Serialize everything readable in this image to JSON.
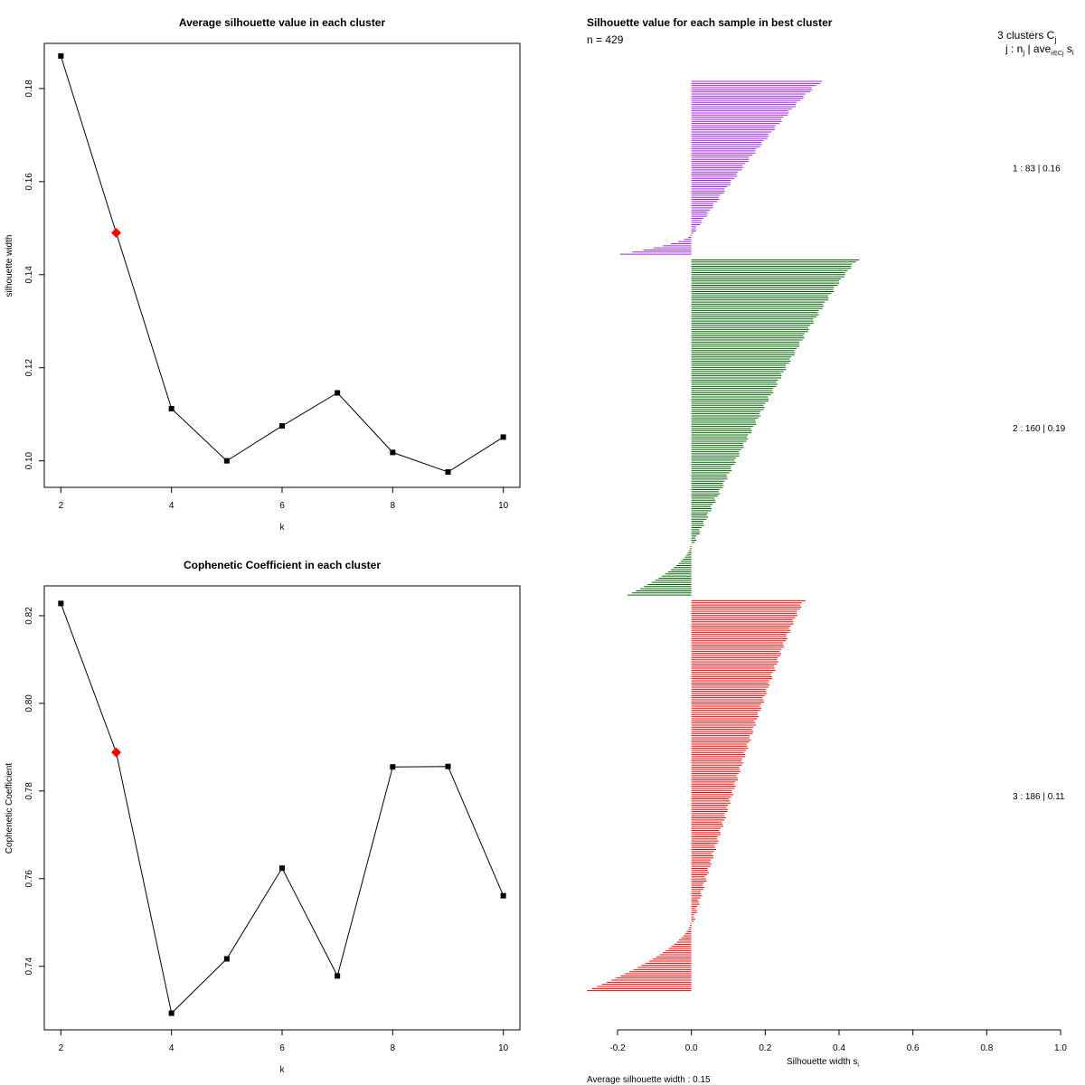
{
  "chart_data": [
    {
      "type": "line",
      "title": "Average silhouette value in each cluster",
      "xlabel": "k",
      "ylabel": "silhouette width",
      "x": [
        2,
        3,
        4,
        5,
        6,
        7,
        8,
        9,
        10
      ],
      "y": [
        0.187,
        0.149,
        0.1112,
        0.1,
        0.1075,
        0.1146,
        0.1018,
        0.0976,
        0.1051
      ],
      "highlight_k": 3,
      "xlim": [
        1.7,
        10.3
      ],
      "ylim": [
        0.0943,
        0.1897
      ],
      "xticks": [
        2,
        4,
        6,
        8,
        10
      ],
      "xtick_labels": [
        "2",
        "4",
        "6",
        "8",
        "10"
      ],
      "yticks": [
        0.1,
        0.12,
        0.14,
        0.16,
        0.18
      ],
      "ytick_labels": [
        "0.10",
        "0.12",
        "0.14",
        "0.16",
        "0.18"
      ],
      "colors": {
        "line": "#000000",
        "point": "#000000",
        "highlight": "#ff0000"
      }
    },
    {
      "type": "line",
      "title": "Cophenetic Coefficient in each cluster",
      "xlabel": "k",
      "ylabel": "Cophenetic Coefficient",
      "x": [
        2,
        3,
        4,
        5,
        6,
        7,
        8,
        9,
        10
      ],
      "y": [
        0.8228,
        0.7888,
        0.7293,
        0.7417,
        0.7624,
        0.7378,
        0.7855,
        0.7856,
        0.7561
      ],
      "highlight_k": 3,
      "xlim": [
        1.7,
        10.3
      ],
      "ylim": [
        0.7255,
        0.8268
      ],
      "xticks": [
        2,
        4,
        6,
        8,
        10
      ],
      "xtick_labels": [
        "2",
        "4",
        "6",
        "8",
        "10"
      ],
      "yticks": [
        0.74,
        0.76,
        0.78,
        0.8,
        0.82
      ],
      "ytick_labels": [
        "0.74",
        "0.76",
        "0.78",
        "0.80",
        "0.82"
      ],
      "colors": {
        "line": "#000000",
        "point": "#000000",
        "highlight": "#ff0000"
      }
    },
    {
      "type": "bar",
      "orientation": "horizontal",
      "title": "Silhouette value for each sample in best cluster",
      "n_label": "n = 429",
      "xlabel": "Silhouette width s",
      "xlabel_sub": "i",
      "xlim": [
        -0.2,
        1.0
      ],
      "xticks": [
        -0.2,
        0.0,
        0.2,
        0.4,
        0.6,
        0.8,
        1.0
      ],
      "xtick_labels": [
        "-0.2",
        "0.0",
        "0.2",
        "0.4",
        "0.6",
        "0.8",
        "1.0"
      ],
      "header_line1": "3  clusters  C",
      "header_line1_sub": "j",
      "header_line2": "j :  n",
      "header_line2_sub": "j",
      "header_line2_rest": " | ave",
      "header_line2_sub2": "i∈Cj",
      "header_line2_end": " s",
      "header_line2_sub3": "i",
      "average_label": "Average silhouette width :  0.15",
      "clusters": [
        {
          "id": 1,
          "size": 83,
          "avg": 0.16,
          "label": "1 :   83  |  0.16",
          "color": "#a020f0",
          "max": 0.36,
          "min": -0.19,
          "n_neg": 10
        },
        {
          "id": 2,
          "size": 160,
          "avg": 0.19,
          "label": "2 :   160  |  0.19",
          "color": "#006400",
          "max": 0.46,
          "min": -0.17,
          "n_neg": 24
        },
        {
          "id": 3,
          "size": 186,
          "avg": 0.11,
          "label": "3 :   186  |  0.11",
          "color": "#ff0000",
          "max": 0.31,
          "min": -0.28,
          "n_neg": 33
        }
      ]
    }
  ]
}
